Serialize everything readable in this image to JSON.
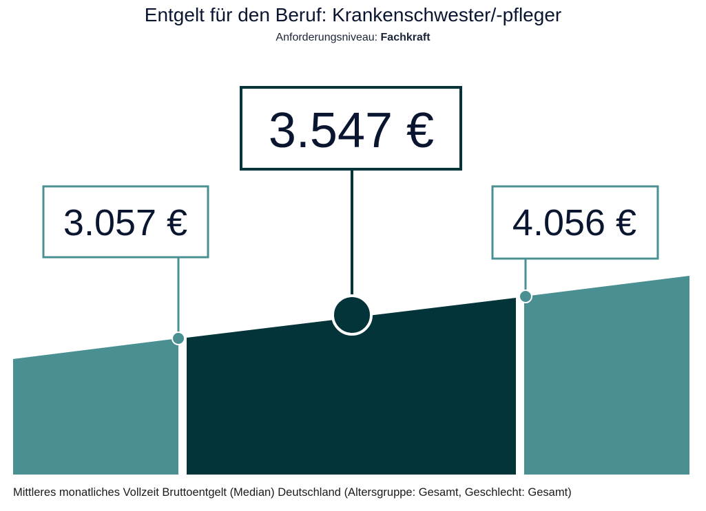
{
  "header": {
    "title": "Entgelt für den Beruf: Krankenschwester/-pfleger",
    "subtitle_prefix": "Anforderungsniveau: ",
    "subtitle_value": "Fachkraft"
  },
  "colors": {
    "teal": "#4a8f92",
    "dark": "#03343a",
    "text": "#0a1530"
  },
  "chart_data": {
    "type": "area",
    "unit": "€",
    "segments": [
      {
        "label": "3.057 €",
        "value": 3057
      },
      {
        "label": "3.547 €",
        "value": 3547
      },
      {
        "label": "4.056 €",
        "value": 4056
      }
    ]
  },
  "footnote": "Mittleres monatliches Vollzeit Bruttoentgelt (Median) Deutschland (Altersgruppe: Gesamt, Geschlecht: Gesamt)"
}
